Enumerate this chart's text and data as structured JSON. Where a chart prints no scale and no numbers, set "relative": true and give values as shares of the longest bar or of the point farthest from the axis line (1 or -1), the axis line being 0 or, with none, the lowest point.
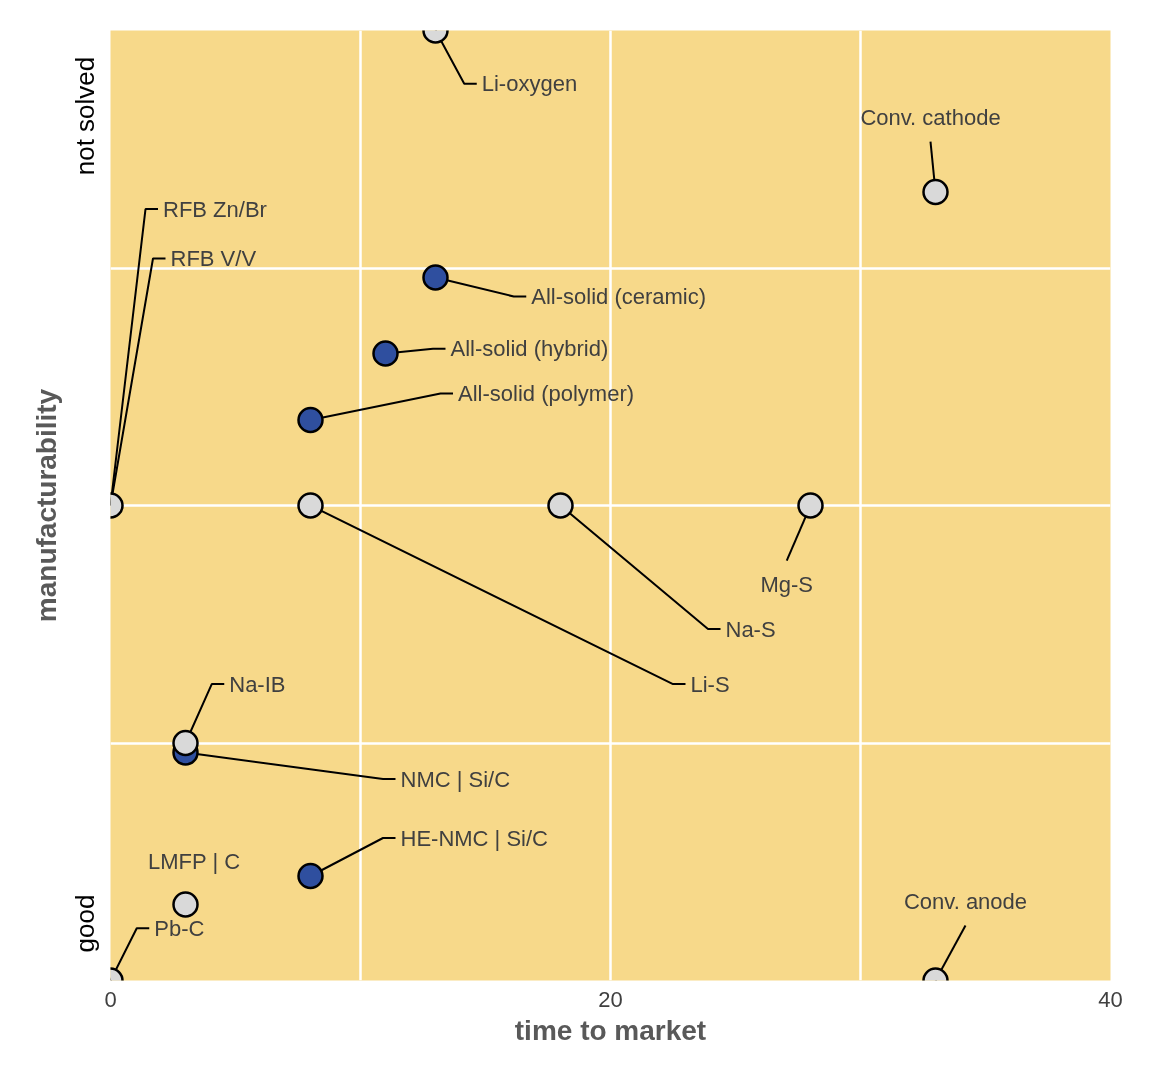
{
  "chart_data": {
    "type": "scatter",
    "xlabel": "time to market",
    "ylabel": "manufacturability",
    "xlim": [
      0,
      40
    ],
    "xticks": [
      0,
      {
        "value": 10,
        "label": null
      },
      20,
      {
        "value": 30,
        "label": null
      },
      40
    ],
    "relative": true,
    "grid": true,
    "marker": "circle",
    "series": [
      {
        "color": "#2f4f9f",
        "x": [
          13,
          11,
          8,
          3,
          8
        ],
        "values": [
          0.74,
          0.66,
          0.59,
          0.24,
          0.11
        ]
      },
      {
        "color": "#d9d9d9",
        "x": [
          13,
          33,
          0,
          8,
          18,
          28,
          3,
          3,
          0,
          33
        ],
        "values": [
          1,
          0.83,
          0.5,
          0.5,
          0.5,
          0.5,
          0.25,
          0.08,
          0,
          0
        ]
      }
    ],
    "annotations": [
      {
        "text": "Li-oxygen",
        "x": 13,
        "y": 1
      },
      {
        "text": "Conv. cathode",
        "x": 33,
        "y": 0.83
      },
      {
        "text": "All-solid (ceramic)",
        "x": 13,
        "y": 0.74
      },
      {
        "text": "All-solid (hybrid)",
        "x": 11,
        "y": 0.66
      },
      {
        "text": "All-solid (polymer)",
        "x": 8,
        "y": 0.59
      },
      {
        "text": "RFB Zn/Br",
        "x": 0,
        "y": 0.5
      },
      {
        "text": "RFB V/V",
        "x": 0,
        "y": 0.5
      },
      {
        "text": "Li-S",
        "x": 8,
        "y": 0.5
      },
      {
        "text": "Na-S",
        "x": 18,
        "y": 0.5
      },
      {
        "text": "Mg-S",
        "x": 28,
        "y": 0.5
      },
      {
        "text": "Na-IB",
        "x": 3,
        "y": 0.25
      },
      {
        "text": "NMC | Si/C",
        "x": 3,
        "y": 0.24
      },
      {
        "text": "HE-NMC | Si/C",
        "x": 8,
        "y": 0.11
      },
      {
        "text": "LMFP | C",
        "x": 3,
        "y": 0.08
      },
      {
        "text": "Pb-C",
        "x": 0,
        "y": 0
      },
      {
        "text": "Conv. anode",
        "x": 33,
        "y": 0
      },
      "good",
      "not solved"
    ]
  }
}
